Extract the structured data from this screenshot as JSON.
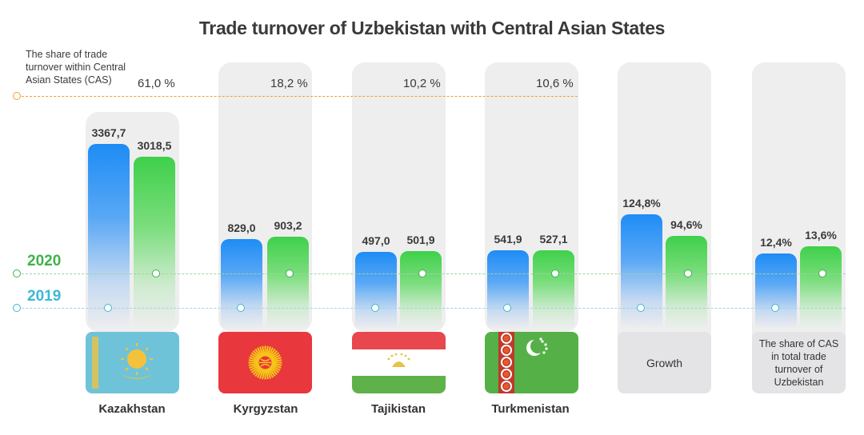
{
  "chart_data": {
    "type": "bar",
    "title": "Trade turnover of Uzbekistan with Central Asian States",
    "share_note": "The share of trade turnover within Central Asian States (CAS)",
    "series": [
      {
        "name": "2019",
        "color": "#1e8cf5"
      },
      {
        "name": "2020",
        "color": "#3fd04b"
      }
    ],
    "groups": [
      {
        "label": "Kazakhstan",
        "share_label": "61,0 %",
        "v2019": 3367.7,
        "v2020": 3018.5,
        "l2019": "3367,7",
        "l2020": "3018,5",
        "flag": "kazakhstan"
      },
      {
        "label": "Kyrgyzstan",
        "share_label": "18,2 %",
        "v2019": 829.0,
        "v2020": 903.2,
        "l2019": "829,0",
        "l2020": "903,2",
        "flag": "kyrgyzstan"
      },
      {
        "label": "Tajikistan",
        "share_label": "10,2 %",
        "v2019": 497.0,
        "v2020": 501.9,
        "l2019": "497,0",
        "l2020": "501,9",
        "flag": "tajikistan"
      },
      {
        "label": "Turkmenistan",
        "share_label": "10,6 %",
        "v2019": 541.9,
        "v2020": 527.1,
        "l2019": "541,9",
        "l2020": "527,1",
        "flag": "turkmenistan"
      },
      {
        "label": "",
        "box_label": "Growth",
        "v2019": 124.8,
        "v2020": 94.6,
        "l2019": "124,8%",
        "l2020": "94,6%"
      },
      {
        "label": "",
        "box_label": "The share of CAS in total trade turnover of Uzbekistan",
        "v2019": 12.4,
        "v2020": 13.6,
        "l2019": "12,4%",
        "l2020": "13,6%"
      }
    ],
    "colors": {
      "share_line": "#f0a030",
      "line_2019": "#3db8d8",
      "line_2020": "#3fb24a"
    }
  }
}
